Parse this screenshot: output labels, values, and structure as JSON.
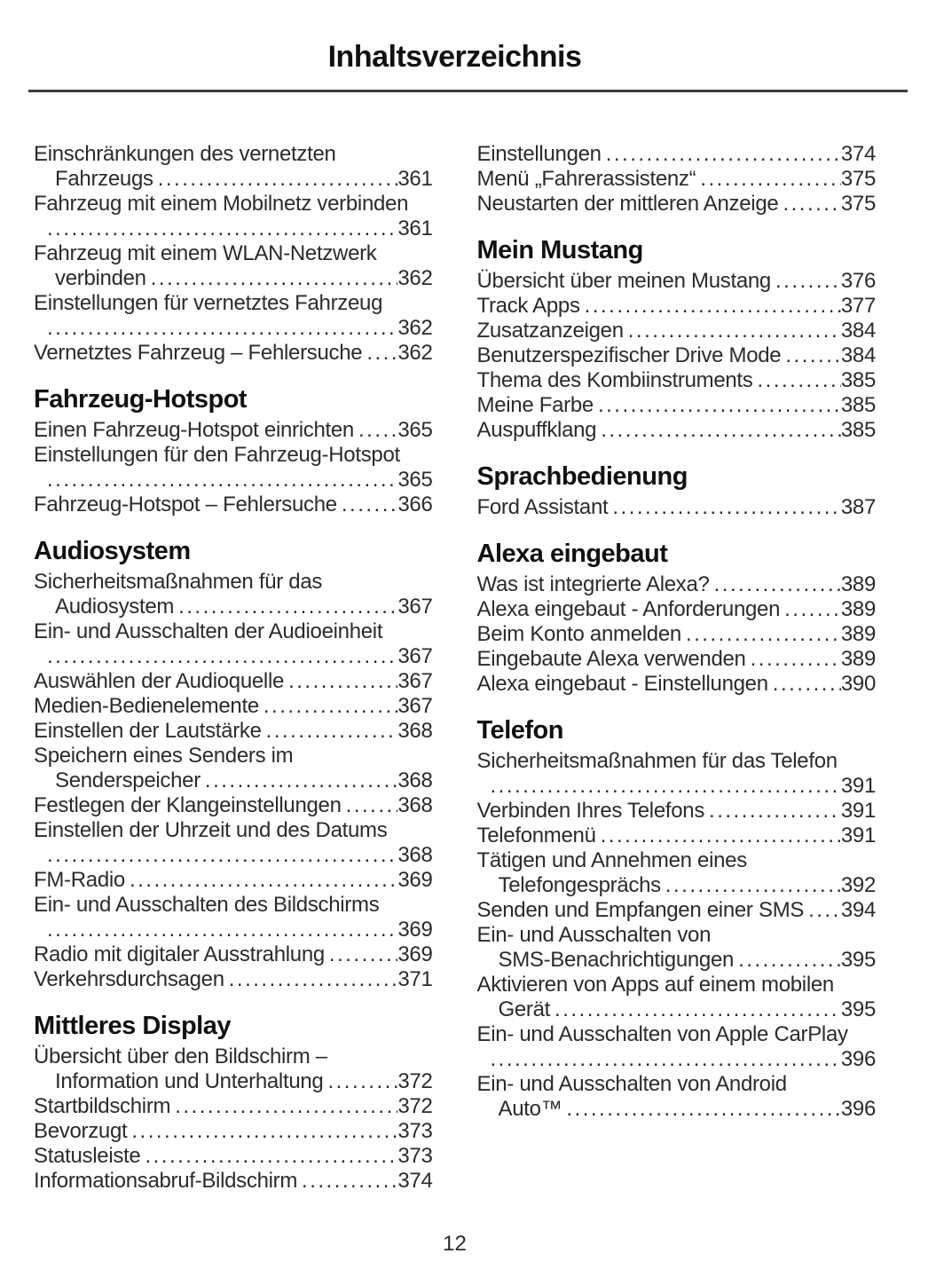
{
  "page": {
    "title": "Inhaltsverzeichnis",
    "page_number": "12"
  },
  "columns": [
    {
      "sections": [
        {
          "title": null,
          "entries": [
            {
              "lines": [
                {
                  "text": "Einschränkungen des vernetzten",
                  "indent": 0,
                  "leader": false,
                  "page": null
                },
                {
                  "text": "Fahrzeugs",
                  "indent": 2,
                  "leader": true,
                  "page": "361"
                }
              ]
            },
            {
              "lines": [
                {
                  "text": "Fahrzeug mit einem Mobilnetz verbinden",
                  "indent": 0,
                  "leader": false,
                  "page": null
                },
                {
                  "text": null,
                  "indent": 1,
                  "leader": true,
                  "page": "361"
                }
              ]
            },
            {
              "lines": [
                {
                  "text": "Fahrzeug mit einem WLAN-Netzwerk",
                  "indent": 0,
                  "leader": false,
                  "page": null
                },
                {
                  "text": "verbinden",
                  "indent": 2,
                  "leader": true,
                  "page": "362"
                }
              ]
            },
            {
              "lines": [
                {
                  "text": "Einstellungen für vernetztes Fahrzeug",
                  "indent": 0,
                  "leader": false,
                  "page": null
                },
                {
                  "text": null,
                  "indent": 1,
                  "leader": true,
                  "page": "362"
                }
              ]
            },
            {
              "lines": [
                {
                  "text": "Vernetztes Fahrzeug – Fehlersuche",
                  "indent": 0,
                  "leader": true,
                  "page": "362"
                }
              ]
            }
          ]
        },
        {
          "title": "Fahrzeug-Hotspot",
          "entries": [
            {
              "lines": [
                {
                  "text": "Einen Fahrzeug-Hotspot einrichten",
                  "indent": 0,
                  "leader": true,
                  "page": "365"
                }
              ]
            },
            {
              "lines": [
                {
                  "text": "Einstellungen für den Fahrzeug-Hotspot",
                  "indent": 0,
                  "leader": false,
                  "page": null
                },
                {
                  "text": null,
                  "indent": 1,
                  "leader": true,
                  "page": "365"
                }
              ]
            },
            {
              "lines": [
                {
                  "text": "Fahrzeug-Hotspot – Fehlersuche",
                  "indent": 0,
                  "leader": true,
                  "page": "366"
                }
              ]
            }
          ]
        },
        {
          "title": "Audiosystem",
          "entries": [
            {
              "lines": [
                {
                  "text": "Sicherheitsmaßnahmen für das",
                  "indent": 0,
                  "leader": false,
                  "page": null
                },
                {
                  "text": "Audiosystem",
                  "indent": 2,
                  "leader": true,
                  "page": "367"
                }
              ]
            },
            {
              "lines": [
                {
                  "text": "Ein- und Ausschalten der Audioeinheit",
                  "indent": 0,
                  "leader": false,
                  "page": null
                },
                {
                  "text": null,
                  "indent": 1,
                  "leader": true,
                  "page": "367"
                }
              ]
            },
            {
              "lines": [
                {
                  "text": "Auswählen der Audioquelle",
                  "indent": 0,
                  "leader": true,
                  "page": "367"
                }
              ]
            },
            {
              "lines": [
                {
                  "text": "Medien-Bedienelemente",
                  "indent": 0,
                  "leader": true,
                  "page": "367"
                }
              ]
            },
            {
              "lines": [
                {
                  "text": "Einstellen der Lautstärke",
                  "indent": 0,
                  "leader": true,
                  "page": "368"
                }
              ]
            },
            {
              "lines": [
                {
                  "text": "Speichern eines Senders im",
                  "indent": 0,
                  "leader": false,
                  "page": null
                },
                {
                  "text": "Senderspeicher",
                  "indent": 2,
                  "leader": true,
                  "page": "368"
                }
              ]
            },
            {
              "lines": [
                {
                  "text": "Festlegen der Klangeinstellungen",
                  "indent": 0,
                  "leader": true,
                  "page": "368"
                }
              ]
            },
            {
              "lines": [
                {
                  "text": "Einstellen der Uhrzeit und des Datums",
                  "indent": 0,
                  "leader": false,
                  "page": null
                },
                {
                  "text": null,
                  "indent": 1,
                  "leader": true,
                  "page": "368"
                }
              ]
            },
            {
              "lines": [
                {
                  "text": "FM-Radio",
                  "indent": 0,
                  "leader": true,
                  "page": "369"
                }
              ]
            },
            {
              "lines": [
                {
                  "text": "Ein- und Ausschalten des Bildschirms",
                  "indent": 0,
                  "leader": false,
                  "page": null
                },
                {
                  "text": null,
                  "indent": 1,
                  "leader": true,
                  "page": "369"
                }
              ]
            },
            {
              "lines": [
                {
                  "text": "Radio mit digitaler Ausstrahlung",
                  "indent": 0,
                  "leader": true,
                  "page": "369"
                }
              ]
            },
            {
              "lines": [
                {
                  "text": "Verkehrsdurchsagen",
                  "indent": 0,
                  "leader": true,
                  "page": "371"
                }
              ]
            }
          ]
        },
        {
          "title": "Mittleres Display",
          "entries": [
            {
              "lines": [
                {
                  "text": "Übersicht über den Bildschirm –",
                  "indent": 0,
                  "leader": false,
                  "page": null
                },
                {
                  "text": "Information und Unterhaltung",
                  "indent": 2,
                  "leader": true,
                  "page": "372"
                }
              ]
            },
            {
              "lines": [
                {
                  "text": "Startbildschirm",
                  "indent": 0,
                  "leader": true,
                  "page": "372"
                }
              ]
            },
            {
              "lines": [
                {
                  "text": "Bevorzugt",
                  "indent": 0,
                  "leader": true,
                  "page": "373"
                }
              ]
            },
            {
              "lines": [
                {
                  "text": "Statusleiste",
                  "indent": 0,
                  "leader": true,
                  "page": "373"
                }
              ]
            },
            {
              "lines": [
                {
                  "text": "Informationsabruf-Bildschirm",
                  "indent": 0,
                  "leader": true,
                  "page": "374"
                }
              ]
            }
          ]
        }
      ]
    },
    {
      "sections": [
        {
          "title": null,
          "entries": [
            {
              "lines": [
                {
                  "text": "Einstellungen",
                  "indent": 0,
                  "leader": true,
                  "page": "374"
                }
              ]
            },
            {
              "lines": [
                {
                  "text": "Menü „Fahrerassistenz“",
                  "indent": 0,
                  "leader": true,
                  "page": "375"
                }
              ]
            },
            {
              "lines": [
                {
                  "text": "Neustarten der mittleren Anzeige",
                  "indent": 0,
                  "leader": true,
                  "page": "375"
                }
              ]
            }
          ]
        },
        {
          "title": "Mein Mustang",
          "entries": [
            {
              "lines": [
                {
                  "text": "Übersicht über meinen Mustang",
                  "indent": 0,
                  "leader": true,
                  "page": "376"
                }
              ]
            },
            {
              "lines": [
                {
                  "text": "Track Apps",
                  "indent": 0,
                  "leader": true,
                  "page": "377"
                }
              ]
            },
            {
              "lines": [
                {
                  "text": "Zusatzanzeigen",
                  "indent": 0,
                  "leader": true,
                  "page": "384"
                }
              ]
            },
            {
              "lines": [
                {
                  "text": "Benutzerspezifischer Drive Mode",
                  "indent": 0,
                  "leader": true,
                  "page": "384"
                }
              ]
            },
            {
              "lines": [
                {
                  "text": "Thema des Kombiinstruments",
                  "indent": 0,
                  "leader": true,
                  "page": "385"
                }
              ]
            },
            {
              "lines": [
                {
                  "text": "Meine Farbe",
                  "indent": 0,
                  "leader": true,
                  "page": "385"
                }
              ]
            },
            {
              "lines": [
                {
                  "text": "Auspuffklang",
                  "indent": 0,
                  "leader": true,
                  "page": "385"
                }
              ]
            }
          ]
        },
        {
          "title": "Sprachbedienung",
          "entries": [
            {
              "lines": [
                {
                  "text": "Ford Assistant",
                  "indent": 0,
                  "leader": true,
                  "page": "387"
                }
              ]
            }
          ]
        },
        {
          "title": "Alexa eingebaut",
          "entries": [
            {
              "lines": [
                {
                  "text": "Was ist integrierte Alexa?",
                  "indent": 0,
                  "leader": true,
                  "page": "389"
                }
              ]
            },
            {
              "lines": [
                {
                  "text": "Alexa eingebaut - Anforderungen",
                  "indent": 0,
                  "leader": true,
                  "page": "389"
                }
              ]
            },
            {
              "lines": [
                {
                  "text": "Beim Konto anmelden",
                  "indent": 0,
                  "leader": true,
                  "page": "389"
                }
              ]
            },
            {
              "lines": [
                {
                  "text": "Eingebaute Alexa verwenden",
                  "indent": 0,
                  "leader": true,
                  "page": "389"
                }
              ]
            },
            {
              "lines": [
                {
                  "text": "Alexa eingebaut - Einstellungen",
                  "indent": 0,
                  "leader": true,
                  "page": "390"
                }
              ]
            }
          ]
        },
        {
          "title": "Telefon",
          "entries": [
            {
              "lines": [
                {
                  "text": "Sicherheitsmaßnahmen für das Telefon",
                  "indent": 0,
                  "leader": false,
                  "page": null
                },
                {
                  "text": null,
                  "indent": 1,
                  "leader": true,
                  "page": "391"
                }
              ]
            },
            {
              "lines": [
                {
                  "text": "Verbinden Ihres Telefons",
                  "indent": 0,
                  "leader": true,
                  "page": "391"
                }
              ]
            },
            {
              "lines": [
                {
                  "text": "Telefonmenü",
                  "indent": 0,
                  "leader": true,
                  "page": "391"
                }
              ]
            },
            {
              "lines": [
                {
                  "text": "Tätigen und Annehmen eines",
                  "indent": 0,
                  "leader": false,
                  "page": null
                },
                {
                  "text": "Telefongesprächs",
                  "indent": 2,
                  "leader": true,
                  "page": "392"
                }
              ]
            },
            {
              "lines": [
                {
                  "text": "Senden und Empfangen einer SMS",
                  "indent": 0,
                  "leader": true,
                  "page": "394"
                }
              ]
            },
            {
              "lines": [
                {
                  "text": "Ein- und Ausschalten von",
                  "indent": 0,
                  "leader": false,
                  "page": null
                },
                {
                  "text": "SMS-Benachrichtigungen",
                  "indent": 2,
                  "leader": true,
                  "page": "395"
                }
              ]
            },
            {
              "lines": [
                {
                  "text": "Aktivieren von Apps auf einem mobilen",
                  "indent": 0,
                  "leader": false,
                  "page": null
                },
                {
                  "text": "Gerät",
                  "indent": 2,
                  "leader": true,
                  "page": "395"
                }
              ]
            },
            {
              "lines": [
                {
                  "text": "Ein- und Ausschalten von Apple CarPlay",
                  "indent": 0,
                  "leader": false,
                  "page": null
                },
                {
                  "text": null,
                  "indent": 1,
                  "leader": true,
                  "page": "396"
                }
              ]
            },
            {
              "lines": [
                {
                  "text": "Ein- und Ausschalten von Android",
                  "indent": 0,
                  "leader": false,
                  "page": null
                },
                {
                  "text": "Auto™",
                  "indent": 2,
                  "leader": true,
                  "page": "396"
                }
              ]
            }
          ]
        }
      ]
    }
  ]
}
